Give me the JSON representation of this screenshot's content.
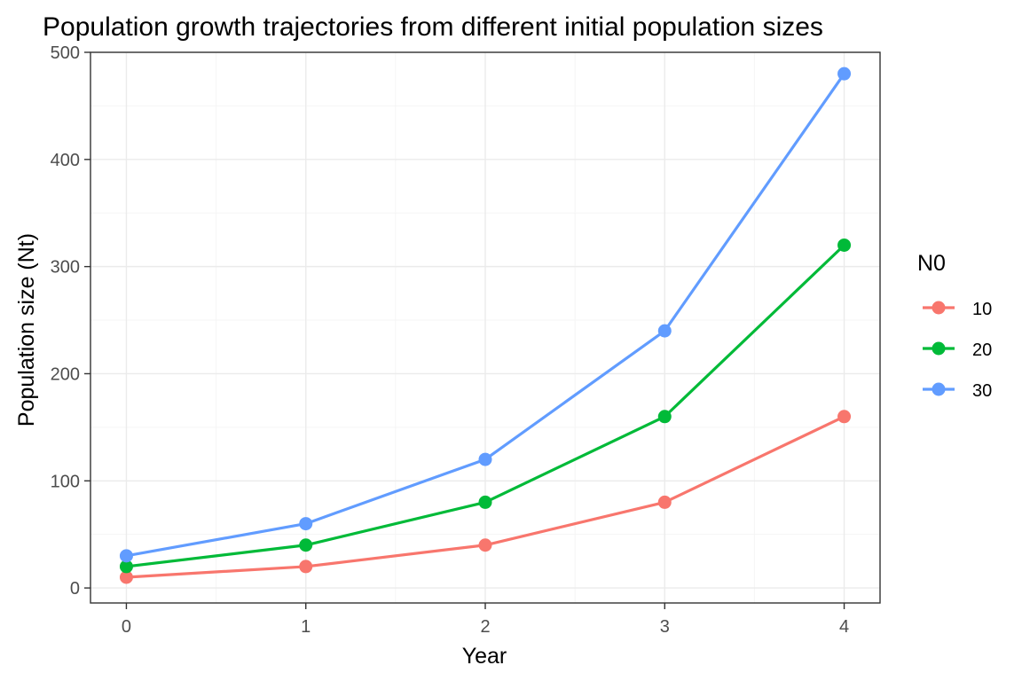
{
  "chart_data": {
    "type": "line",
    "title": "Population growth trajectories from different initial population sizes",
    "xlabel": "Year",
    "ylabel": "Population size (Nt)",
    "x": [
      0,
      1,
      2,
      3,
      4
    ],
    "xticks": [
      0,
      1,
      2,
      3,
      4
    ],
    "yticks": [
      0,
      100,
      200,
      300,
      400,
      500
    ],
    "xlim": [
      -0.2,
      4.2
    ],
    "ylim": [
      -14,
      500
    ],
    "grid": true,
    "legend": {
      "title": "N0",
      "placement": "right"
    },
    "series": [
      {
        "name": "10",
        "color": "#F8766D",
        "values": [
          10,
          20,
          40,
          80,
          160
        ]
      },
      {
        "name": "20",
        "color": "#00BA38",
        "values": [
          20,
          40,
          80,
          160,
          320
        ]
      },
      {
        "name": "30",
        "color": "#619CFF",
        "values": [
          30,
          60,
          120,
          240,
          480
        ]
      }
    ]
  }
}
